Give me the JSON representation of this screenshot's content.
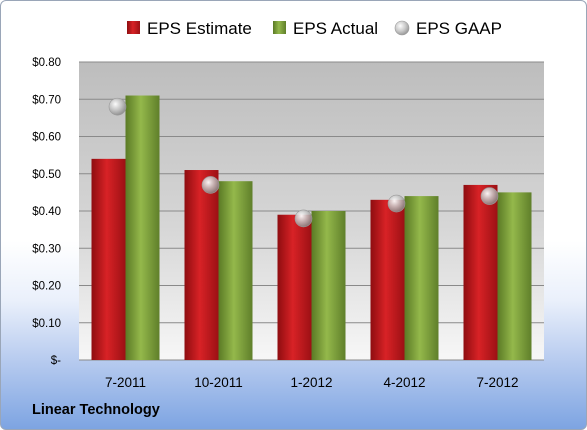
{
  "footer": {
    "company": "Linear Technology"
  },
  "colors": {
    "estimate": "#c8181d",
    "actual": "#7da039",
    "gaap": "#b9b9b9"
  },
  "chart_data": {
    "type": "bar",
    "categories": [
      "7-2011",
      "10-2011",
      "1-2012",
      "4-2012",
      "7-2012"
    ],
    "series": [
      {
        "name": "EPS Estimate",
        "mark": "bar",
        "values": [
          0.54,
          0.51,
          0.39,
          0.43,
          0.47
        ]
      },
      {
        "name": "EPS Actual",
        "mark": "bar",
        "values": [
          0.71,
          0.48,
          0.4,
          0.44,
          0.45
        ]
      },
      {
        "name": "EPS GAAP",
        "mark": "point",
        "values": [
          0.68,
          0.47,
          0.38,
          0.42,
          0.44
        ]
      }
    ],
    "y_ticks": [
      {
        "value": 0,
        "label": "$-"
      },
      {
        "value": 0.1,
        "label": "$0.10"
      },
      {
        "value": 0.2,
        "label": "$0.20"
      },
      {
        "value": 0.3,
        "label": "$0.30"
      },
      {
        "value": 0.4,
        "label": "$0.40"
      },
      {
        "value": 0.5,
        "label": "$0.50"
      },
      {
        "value": 0.6,
        "label": "$0.60"
      },
      {
        "value": 0.7,
        "label": "$0.70"
      },
      {
        "value": 0.8,
        "label": "$0.80"
      }
    ],
    "ylim": [
      0,
      0.8
    ],
    "grid": true,
    "legend": "top"
  }
}
